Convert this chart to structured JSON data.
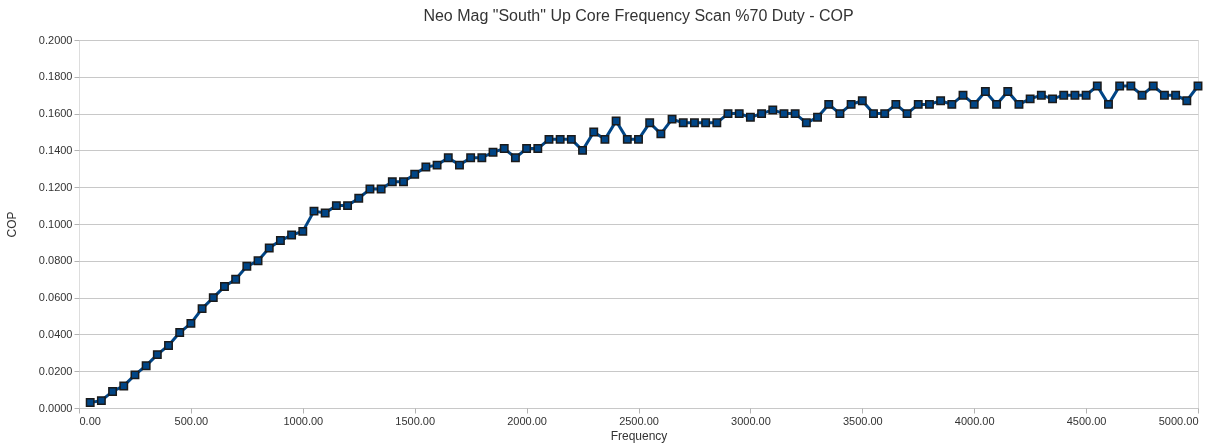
{
  "chart_data": {
    "type": "line",
    "title": "Neo Mag \"South\" Up Core Frequency Scan %70 Duty - COP",
    "xlabel": "Frequency",
    "ylabel": "COP",
    "x": [
      50,
      100,
      150,
      200,
      250,
      300,
      350,
      400,
      450,
      500,
      550,
      600,
      650,
      700,
      750,
      800,
      850,
      900,
      950,
      1000,
      1050,
      1100,
      1150,
      1200,
      1250,
      1300,
      1350,
      1400,
      1450,
      1500,
      1550,
      1600,
      1650,
      1700,
      1750,
      1800,
      1850,
      1900,
      1950,
      2000,
      2050,
      2100,
      2150,
      2200,
      2250,
      2300,
      2350,
      2400,
      2450,
      2500,
      2550,
      2600,
      2650,
      2700,
      2750,
      2800,
      2850,
      2900,
      2950,
      3000,
      3050,
      3100,
      3150,
      3200,
      3250,
      3300,
      3350,
      3400,
      3450,
      3500,
      3550,
      3600,
      3650,
      3700,
      3750,
      3800,
      3850,
      3900,
      3950,
      4000,
      4050,
      4100,
      4150,
      4200,
      4250,
      4300,
      4350,
      4400,
      4450,
      4500,
      4550,
      4600,
      4650,
      4700,
      4750,
      4800,
      4850,
      4900,
      4950,
      5000
    ],
    "series": [
      {
        "color": "#004586",
        "values": [
          0.003,
          0.004,
          0.009,
          0.012,
          0.018,
          0.023,
          0.029,
          0.034,
          0.041,
          0.046,
          0.054,
          0.06,
          0.066,
          0.07,
          0.077,
          0.08,
          0.087,
          0.091,
          0.094,
          0.096,
          0.107,
          0.106,
          0.11,
          0.11,
          0.114,
          0.119,
          0.119,
          0.123,
          0.123,
          0.127,
          0.131,
          0.132,
          0.136,
          0.132,
          0.136,
          0.136,
          0.139,
          0.141,
          0.136,
          0.141,
          0.141,
          0.146,
          0.146,
          0.146,
          0.14,
          0.15,
          0.146,
          0.156,
          0.146,
          0.146,
          0.155,
          0.149,
          0.157,
          0.155,
          0.155,
          0.155,
          0.155,
          0.16,
          0.16,
          0.158,
          0.16,
          0.162,
          0.16,
          0.16,
          0.155,
          0.158,
          0.165,
          0.16,
          0.165,
          0.167,
          0.16,
          0.16,
          0.165,
          0.16,
          0.165,
          0.165,
          0.167,
          0.165,
          0.17,
          0.165,
          0.172,
          0.165,
          0.172,
          0.165,
          0.168,
          0.17,
          0.168,
          0.17,
          0.17,
          0.17,
          0.175,
          0.165,
          0.175,
          0.175,
          0.17,
          0.175,
          0.17,
          0.17,
          0.167,
          0.175
        ]
      }
    ],
    "xlim": [
      0,
      5000
    ],
    "xticks": [
      {
        "value": 0,
        "label": "0.00"
      },
      {
        "value": 500,
        "label": "500.00"
      },
      {
        "value": 1000,
        "label": "1000.00"
      },
      {
        "value": 1500,
        "label": "1500.00"
      },
      {
        "value": 2000,
        "label": "2000.00"
      },
      {
        "value": 2500,
        "label": "2500.00"
      },
      {
        "value": 3000,
        "label": "3000.00"
      },
      {
        "value": 3500,
        "label": "3500.00"
      },
      {
        "value": 4000,
        "label": "4000.00"
      },
      {
        "value": 4500,
        "label": "4500.00"
      },
      {
        "value": 5000,
        "label": "5000.00"
      }
    ],
    "ylim": [
      0,
      0.2
    ],
    "yticks": [
      {
        "value": 0,
        "label": "0.0000"
      },
      {
        "value": 0.02,
        "label": "0.0200"
      },
      {
        "value": 0.04,
        "label": "0.0400"
      },
      {
        "value": 0.06,
        "label": "0.0600"
      },
      {
        "value": 0.08,
        "label": "0.0800"
      },
      {
        "value": 0.1,
        "label": "0.1000"
      },
      {
        "value": 0.12,
        "label": "0.1200"
      },
      {
        "value": 0.14,
        "label": "0.1400"
      },
      {
        "value": 0.16,
        "label": "0.1600"
      },
      {
        "value": 0.18,
        "label": "0.1800"
      },
      {
        "value": 0.2,
        "label": "0.2000"
      }
    ],
    "grid": "y",
    "marker": "square",
    "line_style": "solid"
  }
}
